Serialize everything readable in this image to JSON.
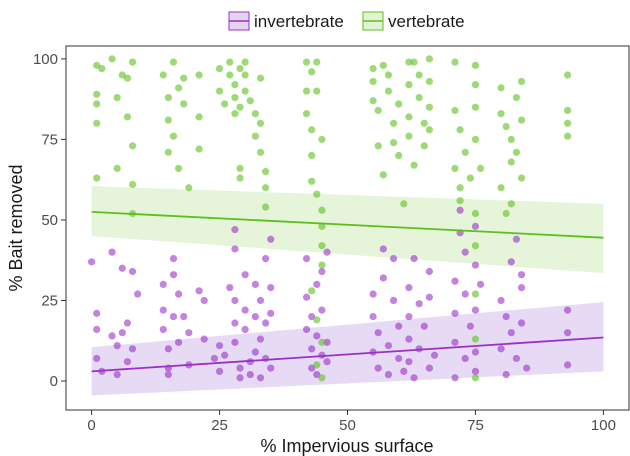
{
  "chart_data": {
    "type": "scatter",
    "title": "",
    "xlabel": "% Impervious surface",
    "ylabel": "% Bait removed",
    "xlim": [
      -5,
      105
    ],
    "ylim": [
      -9,
      104
    ],
    "x_ticks": [
      0,
      25,
      50,
      75,
      100
    ],
    "y_ticks": [
      0,
      25,
      50,
      75,
      100
    ],
    "grid": false,
    "legend_position": "top",
    "series": [
      {
        "name": "invertebrate",
        "color": "#9b30c8",
        "ribbon_color": "#e3d4f2",
        "trend": {
          "x": [
            0,
            100
          ],
          "y": [
            3,
            13.5
          ]
        },
        "band": {
          "x": [
            0,
            100
          ],
          "lower": [
            -4.5,
            3
          ],
          "upper": [
            10.5,
            24.5
          ]
        },
        "points": [
          [
            0,
            37
          ],
          [
            1,
            21
          ],
          [
            1,
            16
          ],
          [
            1,
            7
          ],
          [
            2,
            3
          ],
          [
            4,
            14
          ],
          [
            4,
            40
          ],
          [
            5,
            11
          ],
          [
            5,
            2
          ],
          [
            6,
            15
          ],
          [
            6,
            35
          ],
          [
            7,
            18
          ],
          [
            8,
            34
          ],
          [
            8,
            10
          ],
          [
            7,
            6
          ],
          [
            9,
            27
          ],
          [
            14,
            30
          ],
          [
            14,
            22
          ],
          [
            14,
            16
          ],
          [
            15,
            10
          ],
          [
            15,
            4
          ],
          [
            15,
            2
          ],
          [
            16,
            38
          ],
          [
            16,
            20
          ],
          [
            16,
            33
          ],
          [
            17,
            12
          ],
          [
            17,
            27
          ],
          [
            18,
            20
          ],
          [
            19,
            5
          ],
          [
            19,
            15
          ],
          [
            21,
            28
          ],
          [
            22,
            25
          ],
          [
            22,
            13
          ],
          [
            24,
            7
          ],
          [
            25,
            3
          ],
          [
            25,
            11
          ],
          [
            26,
            8
          ],
          [
            27,
            29
          ],
          [
            28,
            47
          ],
          [
            28,
            41
          ],
          [
            28,
            25
          ],
          [
            28,
            18
          ],
          [
            28,
            12
          ],
          [
            29,
            4
          ],
          [
            29,
            1
          ],
          [
            30,
            33
          ],
          [
            30,
            22
          ],
          [
            30,
            16
          ],
          [
            31,
            6
          ],
          [
            31,
            2
          ],
          [
            32,
            30
          ],
          [
            32,
            20
          ],
          [
            32,
            9
          ],
          [
            33,
            13
          ],
          [
            33,
            25
          ],
          [
            33,
            1
          ],
          [
            34,
            38
          ],
          [
            34,
            18
          ],
          [
            34,
            7
          ],
          [
            35,
            44
          ],
          [
            35,
            29
          ],
          [
            35,
            21
          ],
          [
            35,
            4
          ],
          [
            42,
            38
          ],
          [
            42,
            26
          ],
          [
            42,
            16
          ],
          [
            43,
            10
          ],
          [
            43,
            4
          ],
          [
            43,
            20
          ],
          [
            44,
            30
          ],
          [
            44,
            2
          ],
          [
            44,
            14
          ],
          [
            45,
            8
          ],
          [
            45,
            22
          ],
          [
            45,
            34
          ],
          [
            46,
            6
          ],
          [
            46,
            40
          ],
          [
            46,
            12
          ],
          [
            55,
            27
          ],
          [
            55,
            20
          ],
          [
            55,
            9
          ],
          [
            56,
            4
          ],
          [
            56,
            15
          ],
          [
            57,
            41
          ],
          [
            57,
            32
          ],
          [
            58,
            11
          ],
          [
            58,
            2
          ],
          [
            59,
            25
          ],
          [
            59,
            38
          ],
          [
            60,
            7
          ],
          [
            60,
            17
          ],
          [
            61,
            3
          ],
          [
            62,
            29
          ],
          [
            62,
            20
          ],
          [
            62,
            13
          ],
          [
            62,
            6
          ],
          [
            63,
            38
          ],
          [
            63,
            1
          ],
          [
            64,
            10
          ],
          [
            64,
            24
          ],
          [
            65,
            17
          ],
          [
            66,
            34
          ],
          [
            66,
            4
          ],
          [
            66,
            26
          ],
          [
            67,
            8
          ],
          [
            71,
            31
          ],
          [
            71,
            21
          ],
          [
            71,
            12
          ],
          [
            71,
            1
          ],
          [
            72,
            53
          ],
          [
            72,
            46
          ],
          [
            73,
            40
          ],
          [
            73,
            27
          ],
          [
            73,
            7
          ],
          [
            74,
            17
          ],
          [
            75,
            48
          ],
          [
            75,
            36
          ],
          [
            75,
            22
          ],
          [
            75,
            9
          ],
          [
            75,
            3
          ],
          [
            76,
            30
          ],
          [
            80,
            25
          ],
          [
            80,
            10
          ],
          [
            81,
            20
          ],
          [
            81,
            2
          ],
          [
            82,
            37
          ],
          [
            82,
            15
          ],
          [
            83,
            44
          ],
          [
            83,
            7
          ],
          [
            84,
            29
          ],
          [
            84,
            18
          ],
          [
            84,
            33
          ],
          [
            85,
            4
          ],
          [
            93,
            22
          ],
          [
            93,
            15
          ],
          [
            93,
            5
          ]
        ]
      },
      {
        "name": "vertebrate",
        "color": "#5cbf1c",
        "ribbon_color": "#e2f3d4",
        "trend": {
          "x": [
            0,
            100
          ],
          "y": [
            52.5,
            44.5
          ]
        },
        "band": {
          "x": [
            0,
            100
          ],
          "lower": [
            45,
            33.5
          ],
          "upper": [
            60.5,
            55
          ]
        },
        "points": [
          [
            1,
            98
          ],
          [
            1,
            89
          ],
          [
            1,
            86
          ],
          [
            1,
            80
          ],
          [
            1,
            63
          ],
          [
            2,
            97
          ],
          [
            4,
            100
          ],
          [
            5,
            88
          ],
          [
            5,
            66
          ],
          [
            6,
            95
          ],
          [
            7,
            94
          ],
          [
            7,
            82
          ],
          [
            8,
            99
          ],
          [
            8,
            73
          ],
          [
            8,
            61
          ],
          [
            8,
            52
          ],
          [
            14,
            95
          ],
          [
            15,
            88
          ],
          [
            15,
            81
          ],
          [
            15,
            71
          ],
          [
            16,
            99
          ],
          [
            16,
            76
          ],
          [
            17,
            91
          ],
          [
            17,
            66
          ],
          [
            18,
            94
          ],
          [
            18,
            86
          ],
          [
            19,
            60
          ],
          [
            21,
            95
          ],
          [
            21,
            82
          ],
          [
            21,
            72
          ],
          [
            25,
            97
          ],
          [
            25,
            90
          ],
          [
            26,
            86
          ],
          [
            27,
            99
          ],
          [
            27,
            95
          ],
          [
            28,
            92
          ],
          [
            28,
            88
          ],
          [
            28,
            83
          ],
          [
            29,
            97
          ],
          [
            29,
            85
          ],
          [
            30,
            99
          ],
          [
            30,
            95
          ],
          [
            30,
            90
          ],
          [
            31,
            87
          ],
          [
            32,
            83
          ],
          [
            32,
            76
          ],
          [
            33,
            94
          ],
          [
            33,
            80
          ],
          [
            33,
            71
          ],
          [
            34,
            65
          ],
          [
            34,
            60
          ],
          [
            34,
            54
          ],
          [
            29,
            66
          ],
          [
            29,
            63
          ],
          [
            42,
            99
          ],
          [
            42,
            90
          ],
          [
            42,
            83
          ],
          [
            43,
            96
          ],
          [
            43,
            78
          ],
          [
            43,
            70
          ],
          [
            43,
            62
          ],
          [
            44,
            99
          ],
          [
            44,
            90
          ],
          [
            44,
            58
          ],
          [
            45,
            75
          ],
          [
            45,
            53
          ],
          [
            45,
            48
          ],
          [
            45,
            42
          ],
          [
            45,
            36
          ],
          [
            43,
            28
          ],
          [
            44,
            19
          ],
          [
            45,
            12
          ],
          [
            44,
            5
          ],
          [
            45,
            1
          ],
          [
            55,
            97
          ],
          [
            55,
            93
          ],
          [
            55,
            87
          ],
          [
            56,
            84
          ],
          [
            56,
            73
          ],
          [
            57,
            98
          ],
          [
            57,
            64
          ],
          [
            58,
            95
          ],
          [
            58,
            90
          ],
          [
            59,
            80
          ],
          [
            59,
            74
          ],
          [
            60,
            86
          ],
          [
            60,
            70
          ],
          [
            61,
            55
          ],
          [
            62,
            99
          ],
          [
            62,
            92
          ],
          [
            62,
            82
          ],
          [
            62,
            76
          ],
          [
            63,
            99
          ],
          [
            63,
            67
          ],
          [
            64,
            95
          ],
          [
            64,
            88
          ],
          [
            65,
            80
          ],
          [
            65,
            73
          ],
          [
            66,
            100
          ],
          [
            66,
            93
          ],
          [
            66,
            85
          ],
          [
            66,
            78
          ],
          [
            71,
            99
          ],
          [
            71,
            84
          ],
          [
            71,
            66
          ],
          [
            72,
            78
          ],
          [
            72,
            60
          ],
          [
            72,
            56
          ],
          [
            73,
            71
          ],
          [
            74,
            63
          ],
          [
            75,
            98
          ],
          [
            75,
            92
          ],
          [
            75,
            85
          ],
          [
            75,
            75
          ],
          [
            75,
            52
          ],
          [
            75,
            42
          ],
          [
            75,
            27
          ],
          [
            75,
            13
          ],
          [
            75,
            1
          ],
          [
            76,
            66
          ],
          [
            80,
            91
          ],
          [
            80,
            83
          ],
          [
            80,
            60
          ],
          [
            81,
            79
          ],
          [
            81,
            52
          ],
          [
            82,
            75
          ],
          [
            82,
            68
          ],
          [
            82,
            55
          ],
          [
            83,
            88
          ],
          [
            83,
            71
          ],
          [
            84,
            93
          ],
          [
            84,
            81
          ],
          [
            84,
            63
          ],
          [
            93,
            95
          ],
          [
            93,
            84
          ],
          [
            93,
            80
          ],
          [
            93,
            76
          ]
        ]
      }
    ]
  }
}
